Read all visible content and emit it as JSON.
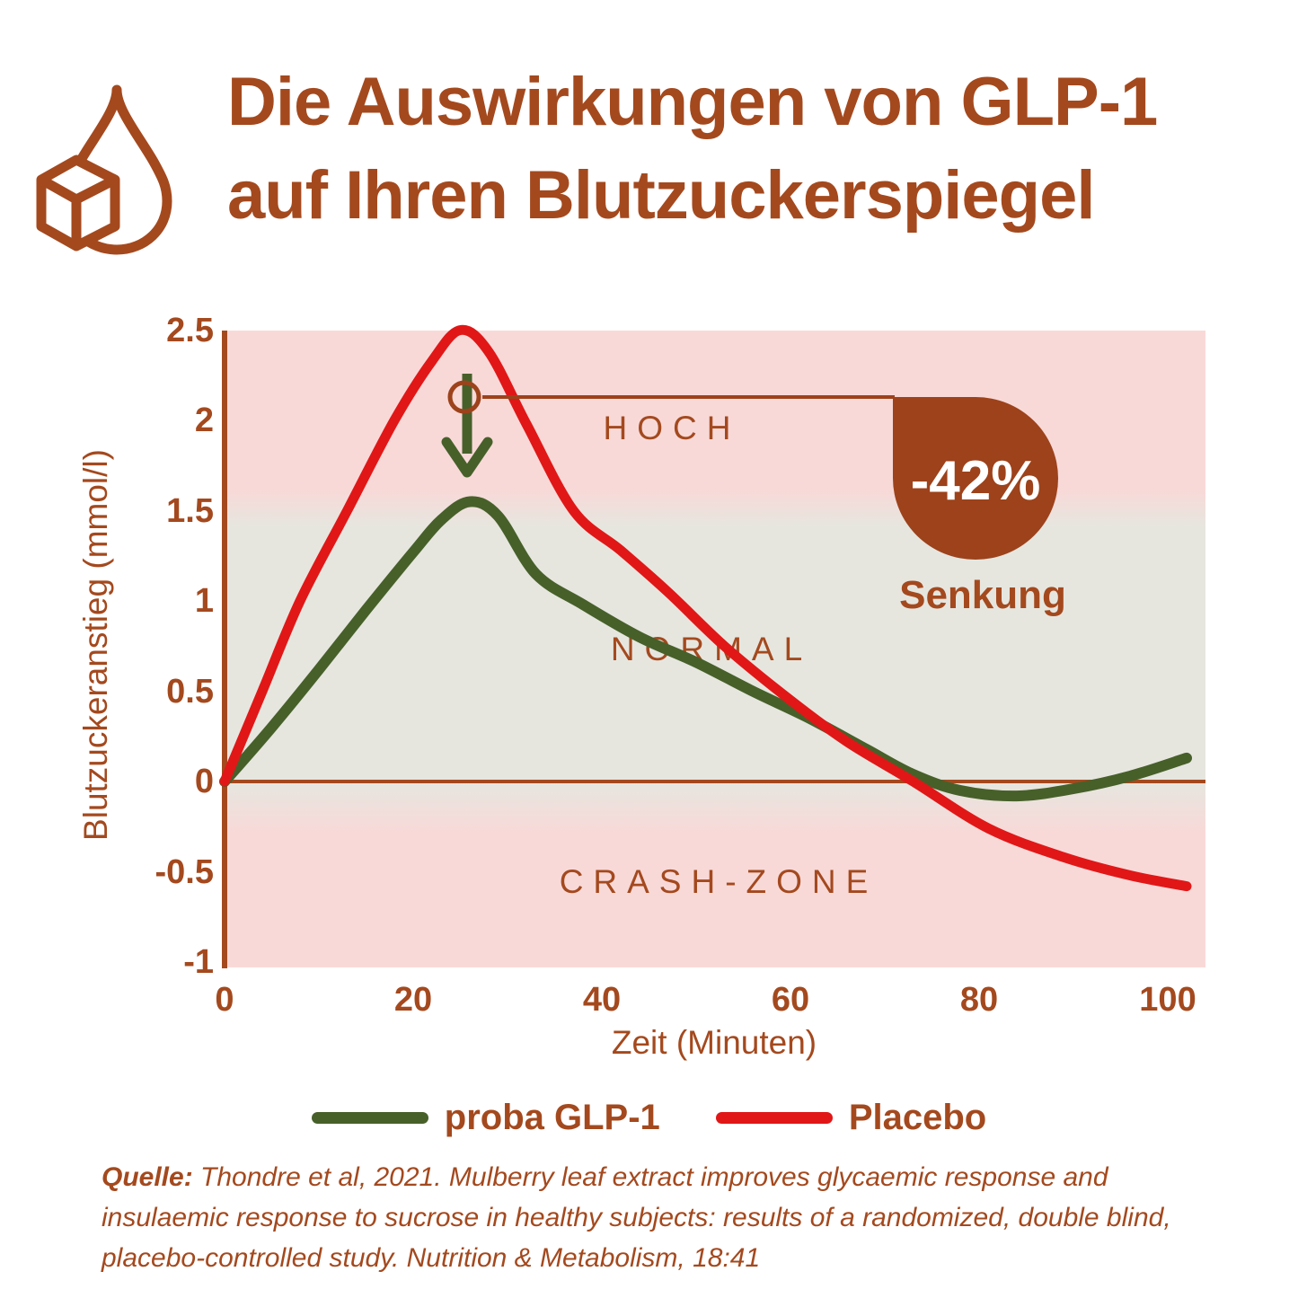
{
  "header": {
    "title_line1": "Die Auswirkungen von GLP-1",
    "title_line2": "auf Ihren Blutzuckerspiegel",
    "icon": "sugar-cube-droplet-icon"
  },
  "chart_data": {
    "type": "line",
    "xlabel": "Zeit (Minuten)",
    "ylabel": "Blutzuckeranstieg (mmol/l)",
    "xlim": [
      0,
      103
    ],
    "ylim": [
      -1.05,
      2.5
    ],
    "grid": false,
    "xticks": [
      0,
      20,
      40,
      60,
      80,
      100
    ],
    "yticks": [
      2.5,
      2,
      1.5,
      1,
      0.5,
      0,
      -0.5,
      -1
    ],
    "xtick_labels": [
      "0",
      "20",
      "40",
      "60",
      "80",
      "100"
    ],
    "ytick_labels": [
      "2.5",
      "2",
      "1.5",
      "1",
      "0.5",
      "0",
      "-0.5",
      "-1"
    ],
    "zones": [
      {
        "label": "HOCH",
        "range": [
          1.5,
          2.5
        ],
        "color": "#F8D9D8"
      },
      {
        "label": "NORMAL",
        "range": [
          0,
          1.5
        ],
        "color": "#E6E6DF"
      },
      {
        "label": "CRASH-ZONE",
        "range": [
          -1.05,
          0
        ],
        "color": "#F8D9D8"
      }
    ],
    "series": [
      {
        "name": "proba GLP-1",
        "color": "#47602A",
        "points": [
          [
            0,
            0
          ],
          [
            5,
            0.3
          ],
          [
            10,
            0.62
          ],
          [
            15,
            0.95
          ],
          [
            20,
            1.27
          ],
          [
            23,
            1.45
          ],
          [
            26,
            1.55
          ],
          [
            29,
            1.47
          ],
          [
            33,
            1.15
          ],
          [
            38,
            0.98
          ],
          [
            44,
            0.8
          ],
          [
            50,
            0.66
          ],
          [
            56,
            0.5
          ],
          [
            62,
            0.35
          ],
          [
            68,
            0.18
          ],
          [
            73,
            0.04
          ],
          [
            78,
            -0.05
          ],
          [
            84,
            -0.08
          ],
          [
            90,
            -0.04
          ],
          [
            96,
            0.03
          ],
          [
            102,
            0.13
          ]
        ]
      },
      {
        "name": "Placebo",
        "color": "#E11717",
        "points": [
          [
            0,
            0
          ],
          [
            4,
            0.5
          ],
          [
            8,
            1.0
          ],
          [
            13,
            1.5
          ],
          [
            18,
            2.0
          ],
          [
            22,
            2.33
          ],
          [
            25,
            2.5
          ],
          [
            28,
            2.38
          ],
          [
            32,
            1.98
          ],
          [
            37,
            1.5
          ],
          [
            42,
            1.28
          ],
          [
            47,
            1.05
          ],
          [
            53,
            0.75
          ],
          [
            60,
            0.45
          ],
          [
            66,
            0.22
          ],
          [
            73,
            0
          ],
          [
            81,
            -0.26
          ],
          [
            89,
            -0.42
          ],
          [
            96,
            -0.52
          ],
          [
            102,
            -0.58
          ]
        ]
      }
    ],
    "annotation": {
      "value": "-42%",
      "label": "Senkung",
      "arrow_from_value": 2.12,
      "arrow_to_value": 1.6,
      "arrow_at_minute": 25.5
    }
  },
  "source": {
    "prefix": "Quelle:",
    "text": " Thondre et al, 2021. Mulberry leaf extract improves glycaemic response and  insulaemic response to sucrose in healthy subjects: results of a randomized,  double blind, placebo-controlled study. Nutrition & Metabolism, 18:41"
  },
  "colors": {
    "brown_text": "#A4491E",
    "blob_brown": "#9D421B",
    "zone_pink": "#F8D9D8",
    "zone_gray": "#E6E6DF",
    "series_green": "#47602A",
    "series_red": "#E11717",
    "white": "#FFFFFF"
  }
}
